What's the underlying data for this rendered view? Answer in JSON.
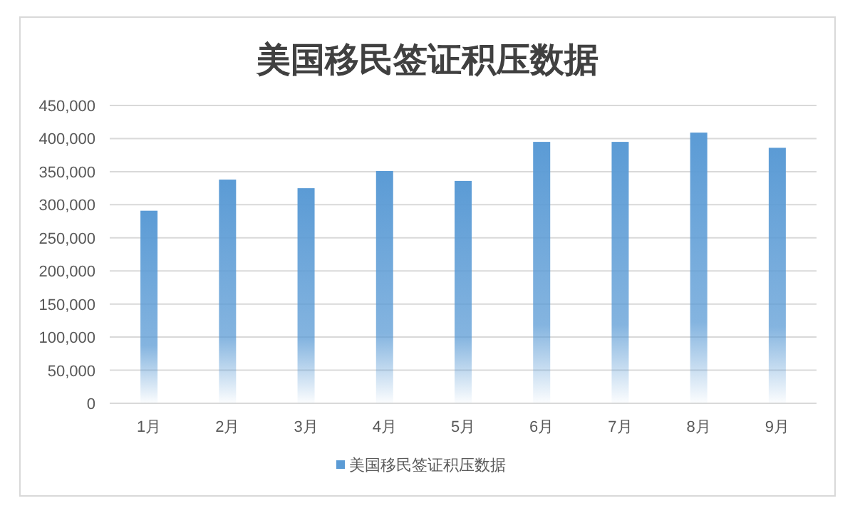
{
  "chart_data": {
    "type": "bar",
    "title": "美国移民签证积压数据",
    "categories": [
      "1月",
      "2月",
      "3月",
      "4月",
      "5月",
      "6月",
      "7月",
      "8月",
      "9月"
    ],
    "series": [
      {
        "name": "美国移民签证积压数据",
        "color": "#5b9bd5",
        "values": [
          291000,
          338000,
          325000,
          351000,
          336000,
          395000,
          395000,
          409000,
          386000
        ]
      }
    ],
    "ylim": [
      0,
      450000
    ],
    "yticks": [
      {
        "value": 0,
        "label": "0"
      },
      {
        "value": 50000,
        "label": "50,000"
      },
      {
        "value": 100000,
        "label": "100,000"
      },
      {
        "value": 150000,
        "label": "150,000"
      },
      {
        "value": 200000,
        "label": "200,000"
      },
      {
        "value": 250000,
        "label": "250,000"
      },
      {
        "value": 300000,
        "label": "300,000"
      },
      {
        "value": 350000,
        "label": "350,000"
      },
      {
        "value": 400000,
        "label": "400,000"
      },
      {
        "value": 450000,
        "label": "450,000"
      }
    ],
    "grid": "y",
    "legend": "bottom"
  }
}
